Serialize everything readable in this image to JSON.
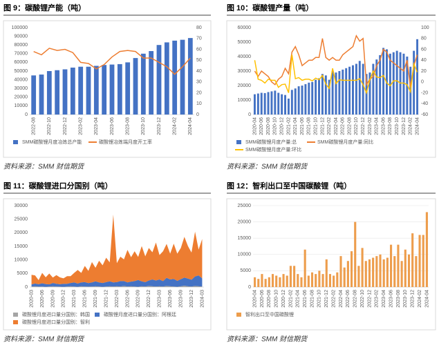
{
  "chart_data": [
    {
      "type": "bar",
      "title": "图 9：碳酸锂产能（吨）",
      "source": "资料来源：SMM 财信期货",
      "categories": [
        "2022-08",
        null,
        "2022-10",
        null,
        "2022-12",
        null,
        "2023-02",
        null,
        "2023-04",
        null,
        "2023-06",
        null,
        "2023-08",
        null,
        "2023-10",
        null,
        "2023-12",
        null,
        "2024-02",
        null,
        "2024-04"
      ],
      "series": [
        {
          "name": "SMM碳酸锂月度冶炼总产能",
          "type": "bar",
          "color": "#4472c4",
          "values": [
            45000,
            46000,
            50000,
            51000,
            52000,
            54000,
            55000,
            55000,
            56000,
            57000,
            57500,
            58000,
            60000,
            65000,
            70000,
            73000,
            80000,
            83000,
            85000,
            86000,
            88000
          ]
        },
        {
          "name": "碳酸锂冶炼端月度开工率",
          "type": "line",
          "axis": "y2",
          "color": "#ed7d31",
          "values": [
            58,
            55,
            61,
            59,
            60,
            57,
            48,
            47,
            42,
            46,
            53,
            58,
            59,
            58,
            52,
            52,
            48,
            44,
            37,
            44,
            52
          ]
        }
      ],
      "ylim": [
        0,
        100000
      ],
      "yticks": [
        0,
        10000,
        20000,
        30000,
        40000,
        50000,
        60000,
        70000,
        80000,
        90000,
        100000
      ],
      "y2lim": [
        0,
        80
      ],
      "y2ticks": [
        0,
        10,
        20,
        30,
        40,
        50,
        60,
        70,
        80
      ],
      "grid": false
    },
    {
      "type": "bar",
      "title": "图 10：碳酸锂产量（吨）",
      "source": "资料来源：SMM 财信期货",
      "categories": [
        "2020-04",
        null,
        "2020-06",
        null,
        "2020-08",
        null,
        "2020-10",
        null,
        "2020-12",
        null,
        "2021-02",
        null,
        "2021-04",
        null,
        "2021-06",
        null,
        "2021-08",
        null,
        "2021-10",
        null,
        "2021-12",
        null,
        "2022-02",
        null,
        "2022-04",
        null,
        "2022-06",
        null,
        "2022-08",
        null,
        "2022-10",
        null,
        "2022-12",
        null,
        "2023-02",
        null,
        "2023-04",
        null,
        "2023-06",
        null,
        "2023-08",
        null,
        "2023-10",
        null,
        "2023-12",
        null,
        "2024-02",
        null,
        "2024-04"
      ],
      "series": [
        {
          "name": "SMM碳酸锂月度产量:总",
          "type": "bar",
          "color": "#4472c4",
          "values": [
            14000,
            14500,
            15000,
            14800,
            15500,
            16000,
            16500,
            15000,
            14000,
            13500,
            11000,
            17000,
            18000,
            19500,
            20000,
            21000,
            22000,
            22500,
            24000,
            25000,
            28000,
            27000,
            24000,
            30000,
            29000,
            30000,
            31000,
            32000,
            33000,
            34000,
            35000,
            37000,
            35000,
            28000,
            29000,
            35000,
            38000,
            41000,
            46000,
            45000,
            42000,
            43000,
            44000,
            43000,
            42000,
            40000,
            33000,
            44000,
            52000
          ]
        },
        {
          "name": "SMM碳酸锂月度产量:同比",
          "type": "line",
          "axis": "y2",
          "color": "#ed7d31",
          "values": [
            20,
            10,
            20,
            15,
            10,
            0,
            -5,
            5,
            10,
            25,
            15,
            55,
            65,
            50,
            30,
            35,
            40,
            40,
            45,
            45,
            80,
            45,
            40,
            45,
            40,
            40,
            50,
            55,
            60,
            65,
            85,
            75,
            80,
            -5,
            5,
            10,
            30,
            40,
            60,
            55,
            40,
            35,
            30,
            25,
            20,
            40,
            -10,
            30,
            50
          ]
        },
        {
          "name": "SMM碳酸锂月度产量:环比",
          "type": "line",
          "axis": "y2",
          "color": "#ffc000",
          "values": [
            40,
            5,
            3,
            -2,
            5,
            3,
            3,
            -10,
            -5,
            -4,
            -20,
            50,
            6,
            8,
            3,
            5,
            5,
            2,
            7,
            4,
            12,
            -4,
            -12,
            25,
            -3,
            4,
            3,
            3,
            3,
            3,
            3,
            6,
            -5,
            -20,
            4,
            20,
            9,
            8,
            12,
            -2,
            -7,
            2,
            2,
            -2,
            -2,
            -5,
            -18,
            33,
            18
          ]
        }
      ],
      "ylim": [
        0,
        60000
      ],
      "yticks": [
        0,
        10000,
        20000,
        30000,
        40000,
        50000,
        60000
      ],
      "y2lim": [
        -60,
        100
      ],
      "y2ticks": [
        -60,
        -40,
        -20,
        0,
        20,
        40,
        60,
        80,
        100
      ],
      "grid": false
    },
    {
      "type": "area",
      "stacked": true,
      "title": "图 11：碳酸锂进口分国别（吨）",
      "source": "资料来源：SMM 财信期货",
      "categories": [
        "2020-03",
        null,
        null,
        "2020-06",
        null,
        null,
        "2020-09",
        null,
        null,
        "2020-12",
        null,
        null,
        "2021-03",
        null,
        null,
        "2021-06",
        null,
        null,
        "2021-09",
        null,
        null,
        "2021-12",
        null,
        null,
        "2022-03",
        null,
        null,
        "2022-06",
        null,
        null,
        "2022-09",
        null,
        null,
        "2022-12",
        null,
        null,
        "2023-03",
        null,
        null,
        "2023-06",
        null,
        null,
        "2023-09",
        null,
        null,
        "2023-12",
        null,
        null,
        "2024-03"
      ],
      "series": [
        {
          "name": "碳酸锂月度进口量分国别：韩国",
          "type": "area",
          "color": "#a5a5a5",
          "values": [
            200,
            300,
            150,
            200,
            100,
            200,
            300,
            200,
            150,
            100,
            200,
            300,
            200,
            100,
            300,
            200,
            150,
            200,
            300,
            200,
            100,
            200,
            300,
            200,
            300,
            200,
            400,
            200,
            300,
            200,
            100,
            300,
            200,
            400,
            300,
            200,
            300,
            200,
            400,
            300,
            200,
            100,
            300,
            500,
            300,
            200,
            400,
            300,
            200
          ]
        },
        {
          "name": "碳酸锂月度进口量分国别：阿根廷",
          "type": "area",
          "color": "#4472c4",
          "values": [
            800,
            1000,
            900,
            1200,
            1000,
            800,
            1200,
            1000,
            900,
            1100,
            1000,
            1200,
            1500,
            1200,
            1400,
            1600,
            1300,
            1500,
            1800,
            1500,
            1400,
            1600,
            1800,
            1500,
            1500,
            2000,
            1800,
            1500,
            1700,
            2000,
            2500,
            1800,
            1600,
            2000,
            2500,
            2200,
            2500,
            2000,
            3000,
            2500,
            2800,
            2200,
            2600,
            3000,
            2800,
            2500,
            3500,
            4000,
            3000
          ]
        },
        {
          "name": "碳酸锂月度进口量分国别：智利",
          "type": "area",
          "color": "#ed7d31",
          "values": [
            3500,
            3000,
            1500,
            3800,
            2500,
            4000,
            2000,
            3200,
            2500,
            2000,
            2800,
            2500,
            3500,
            5000,
            3500,
            6000,
            4500,
            7500,
            5000,
            8000,
            6500,
            9000,
            7000,
            25000,
            7000,
            9000,
            8000,
            12000,
            9000,
            11000,
            8500,
            13000,
            9500,
            12000,
            10000,
            14000,
            9000,
            11000,
            12500,
            9500,
            13000,
            10000,
            11500,
            15000,
            12000,
            10000,
            16500,
            9500,
            14500
          ]
        }
      ],
      "ylim": [
        0,
        30000
      ],
      "yticks": [
        0,
        5000,
        10000,
        15000,
        20000,
        25000,
        30000
      ],
      "grid": false
    },
    {
      "type": "bar",
      "title": "图 12：智利出口至中国碳酸锂（吨）",
      "source": "资料来源：SMM 财信期货",
      "categories": [
        "2020-04",
        null,
        "2020-06",
        null,
        "2020-08",
        null,
        "2020-10",
        null,
        "2020-12",
        null,
        "2021-02",
        null,
        "2021-04",
        null,
        "2021-06",
        null,
        "2021-08",
        null,
        "2021-10",
        null,
        "2021-12",
        null,
        "2022-02",
        null,
        "2022-04",
        null,
        "2022-06",
        null,
        "2022-08",
        null,
        "2022-10",
        null,
        "2022-12",
        null,
        "2023-02",
        null,
        "2023-04",
        null,
        "2023-06",
        null,
        "2023-08",
        null,
        "2023-10",
        null,
        "2023-12",
        null,
        "2024-02",
        null,
        "2024-04"
      ],
      "series": [
        {
          "name": "智利出口至中国碳酸锂",
          "type": "bar",
          "color": "#ed9d4c",
          "values": [
            3000,
            2500,
            4000,
            2500,
            3000,
            4000,
            3500,
            3000,
            4000,
            3500,
            6500,
            6500,
            4000,
            3000,
            11500,
            3500,
            4500,
            4000,
            5000,
            4000,
            8500,
            4000,
            3500,
            4500,
            9500,
            6000,
            8000,
            11000,
            20000,
            6500,
            12000,
            8000,
            8500,
            9000,
            9500,
            10000,
            8500,
            9000,
            13000,
            9500,
            13000,
            8000,
            11500,
            10000,
            16500,
            9500,
            16000,
            16000,
            23000
          ]
        }
      ],
      "ylim": [
        0,
        25000
      ],
      "yticks": [
        0,
        5000,
        10000,
        15000,
        20000,
        25000
      ],
      "grid": true
    }
  ]
}
